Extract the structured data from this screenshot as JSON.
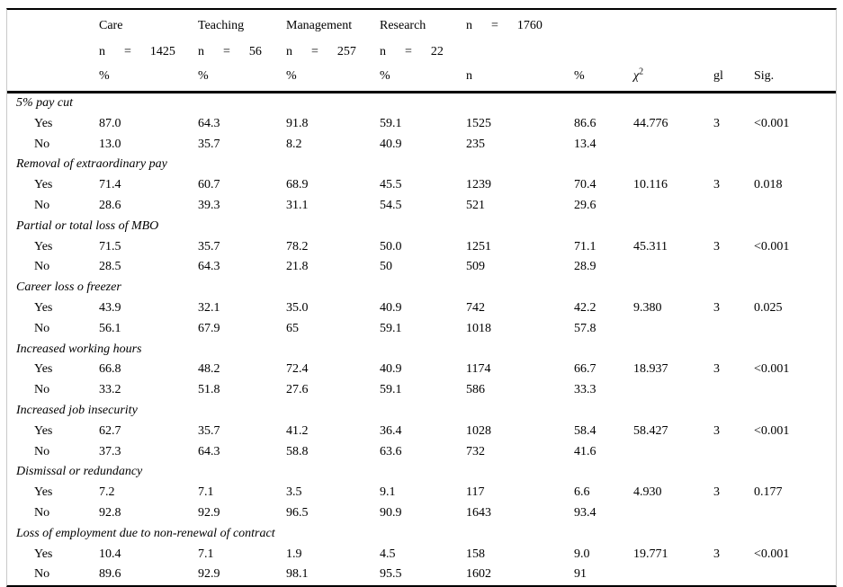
{
  "table": {
    "header": {
      "groups": [
        {
          "label": "Care",
          "n_line": "n      =      1425"
        },
        {
          "label": "Teaching",
          "n_line": "n      =      56"
        },
        {
          "label": "Management",
          "n_line": "n      =      257"
        },
        {
          "label": "Research",
          "n_line": "n      =      22"
        }
      ],
      "total": {
        "line": "n      =      1760"
      },
      "cols": {
        "care_pct": "%",
        "teaching_pct": "%",
        "management_pct": "%",
        "research_pct": "%",
        "total_n": "n",
        "total_pct": "%",
        "chi_base": "χ",
        "chi_sup": "2",
        "gl": "gl",
        "sig": "Sig."
      }
    },
    "groups": [
      {
        "label": "5% pay cut",
        "rows": [
          {
            "label": "Yes",
            "values": [
              "87.0",
              "64.3",
              "91.8",
              "59.1",
              "1525",
              "86.6",
              "44.776",
              "3",
              "<0.001"
            ]
          },
          {
            "label": "No",
            "values": [
              "13.0",
              "35.7",
              "8.2",
              "40.9",
              "235",
              "13.4",
              "",
              "",
              ""
            ]
          }
        ]
      },
      {
        "label": "Removal of extraordinary pay",
        "rows": [
          {
            "label": "Yes",
            "values": [
              "71.4",
              "60.7",
              "68.9",
              "45.5",
              "1239",
              "70.4",
              "10.116",
              "3",
              "0.018"
            ]
          },
          {
            "label": "No",
            "values": [
              "28.6",
              "39.3",
              "31.1",
              "54.5",
              "521",
              "29.6",
              "",
              "",
              ""
            ]
          }
        ]
      },
      {
        "label": "Partial or total loss of MBO",
        "rows": [
          {
            "label": "Yes",
            "values": [
              "71.5",
              "35.7",
              "78.2",
              "50.0",
              "1251",
              "71.1",
              "45.311",
              "3",
              "<0.001"
            ]
          },
          {
            "label": "No",
            "values": [
              "28.5",
              "64.3",
              "21.8",
              "50",
              "509",
              "28.9",
              "",
              "",
              ""
            ]
          }
        ]
      },
      {
        "label": "Career loss o freezer",
        "rows": [
          {
            "label": "Yes",
            "values": [
              "43.9",
              "32.1",
              "35.0",
              "40.9",
              "742",
              "42.2",
              "9.380",
              "3",
              "0.025"
            ]
          },
          {
            "label": "No",
            "values": [
              "56.1",
              "67.9",
              "65",
              "59.1",
              "1018",
              "57.8",
              "",
              "",
              ""
            ]
          }
        ]
      },
      {
        "label": "Increased working hours",
        "rows": [
          {
            "label": "Yes",
            "values": [
              "66.8",
              "48.2",
              "72.4",
              "40.9",
              "1174",
              "66.7",
              "18.937",
              "3",
              "<0.001"
            ]
          },
          {
            "label": "No",
            "values": [
              "33.2",
              "51.8",
              "27.6",
              "59.1",
              "586",
              "33.3",
              "",
              "",
              ""
            ]
          }
        ]
      },
      {
        "label": "Increased job insecurity",
        "rows": [
          {
            "label": "Yes",
            "values": [
              "62.7",
              "35.7",
              "41.2",
              "36.4",
              "1028",
              "58.4",
              "58.427",
              "3",
              "<0.001"
            ]
          },
          {
            "label": "No",
            "values": [
              "37.3",
              "64.3",
              "58.8",
              "63.6",
              "732",
              "41.6",
              "",
              "",
              ""
            ]
          }
        ]
      },
      {
        "label": "Dismissal or redundancy",
        "rows": [
          {
            "label": "Yes",
            "values": [
              "7.2",
              "7.1",
              "3.5",
              "9.1",
              "117",
              "6.6",
              "4.930",
              "3",
              "0.177"
            ]
          },
          {
            "label": "No",
            "values": [
              "92.8",
              "92.9",
              "96.5",
              "90.9",
              "1643",
              "93.4",
              "",
              "",
              ""
            ]
          }
        ]
      },
      {
        "label": "Loss of employment due to non-renewal of contract",
        "rows": [
          {
            "label": "Yes",
            "values": [
              "10.4",
              "7.1",
              "1.9",
              "4.5",
              "158",
              "9.0",
              "19.771",
              "3",
              "<0.001"
            ]
          },
          {
            "label": "No",
            "values": [
              "89.6",
              "92.9",
              "98.1",
              "95.5",
              "1602",
              "91",
              "",
              "",
              ""
            ]
          }
        ]
      }
    ]
  }
}
